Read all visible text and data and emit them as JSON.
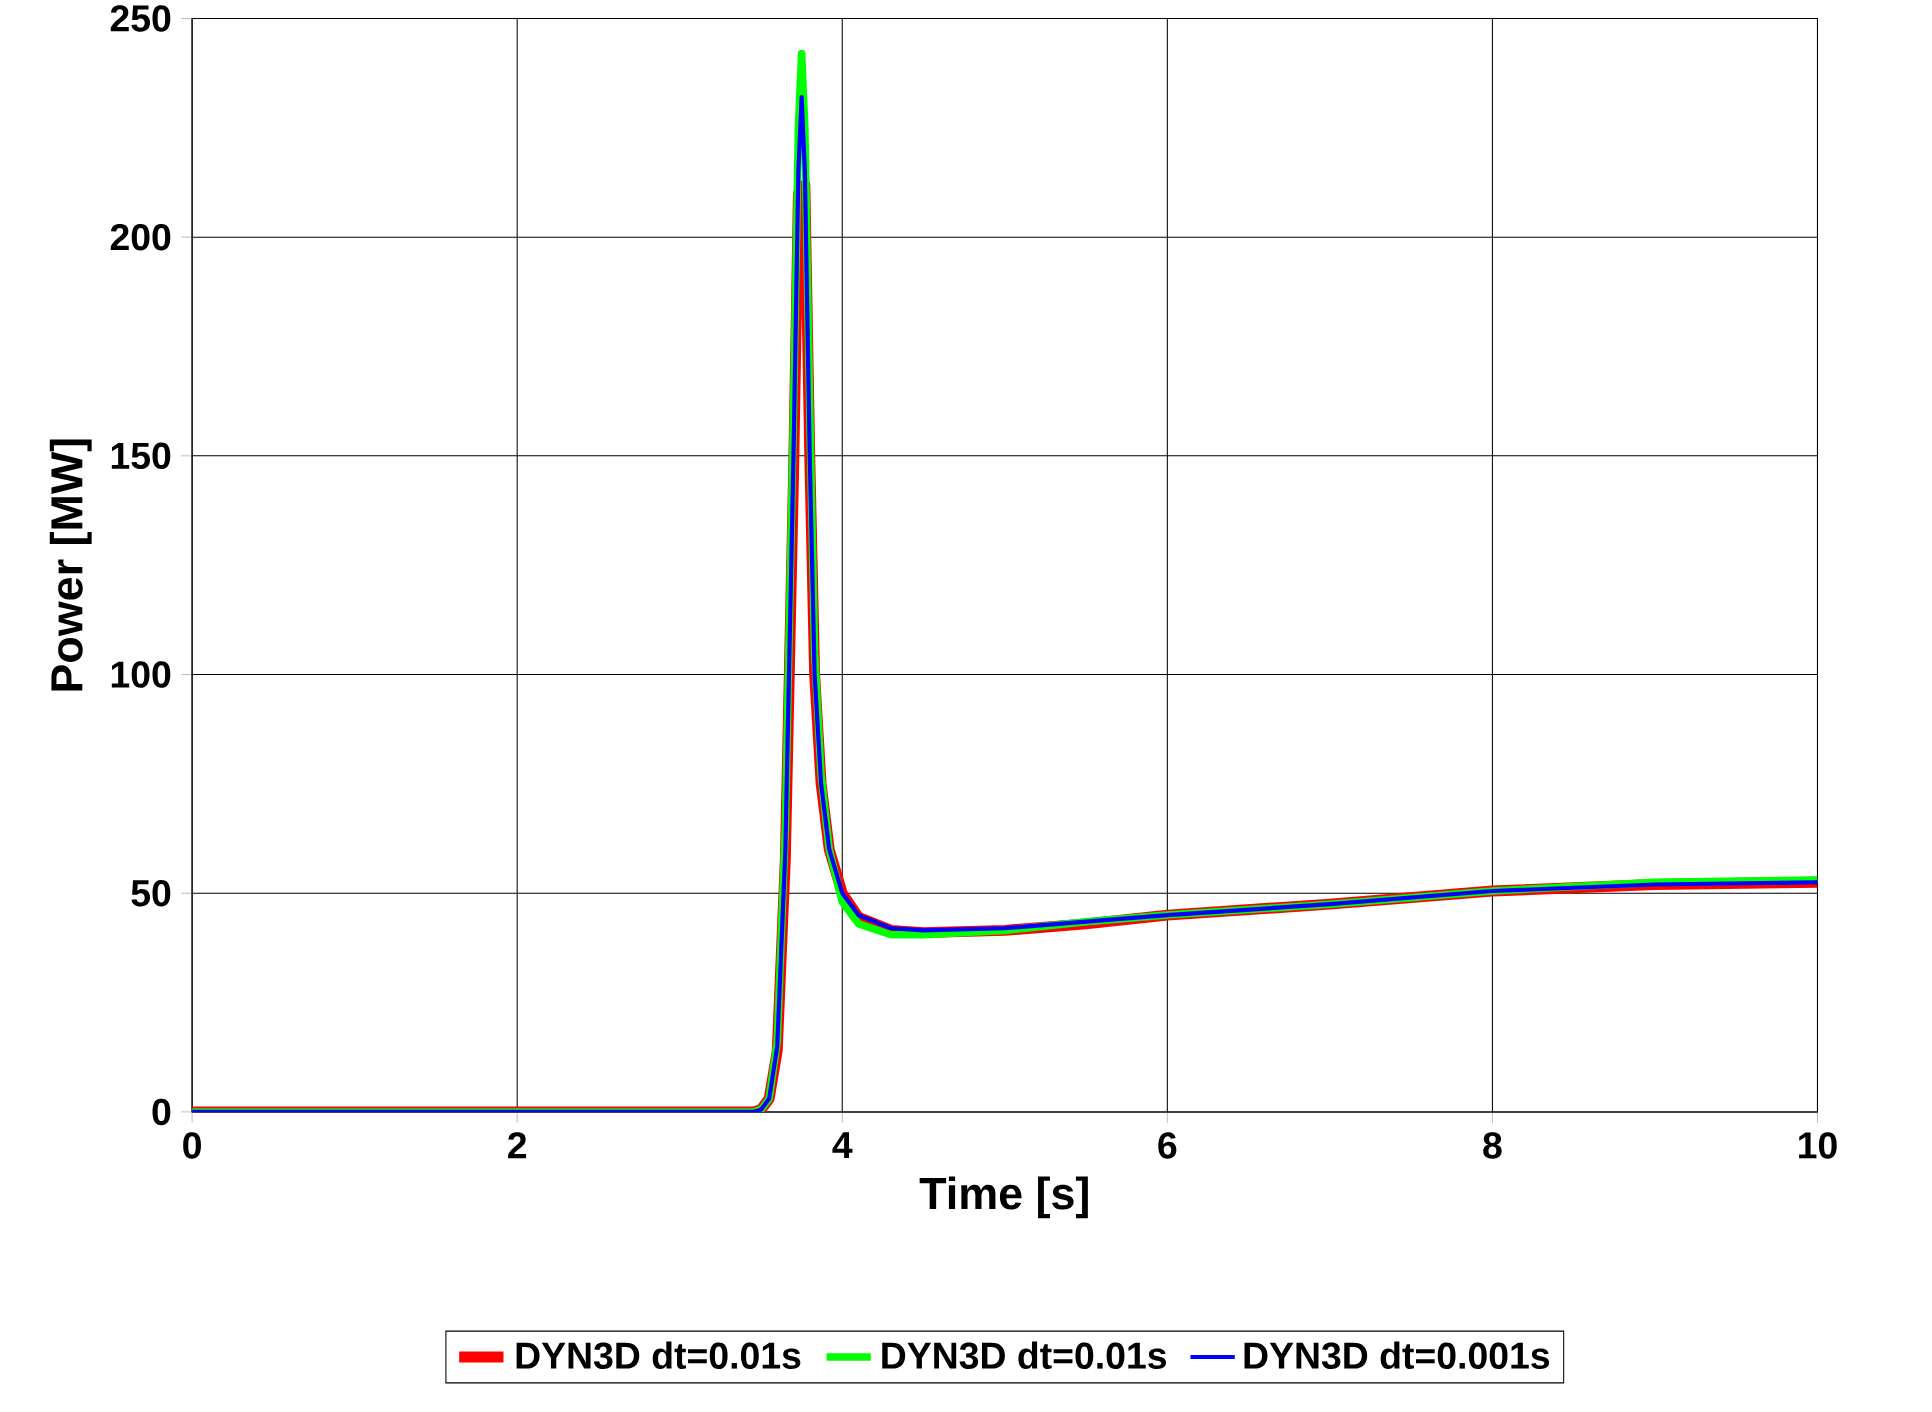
{
  "chart_data": {
    "type": "line",
    "xlabel": "Time [s]",
    "ylabel": "Power [MW]",
    "xlim": [
      0,
      10
    ],
    "ylim": [
      0,
      250
    ],
    "xticks": [
      0,
      2,
      4,
      6,
      8,
      10
    ],
    "yticks": [
      0,
      50,
      100,
      150,
      200,
      250
    ],
    "grid": true,
    "legend": "bottom",
    "marker": "none",
    "line_style": "solid",
    "series": [
      {
        "name": "DYN3D dt=0.01s",
        "color": "#ff0000",
        "x": [
          0,
          3.45,
          3.5,
          3.55,
          3.6,
          3.65,
          3.7,
          3.73,
          3.75,
          3.77,
          3.8,
          3.83,
          3.87,
          3.92,
          4.0,
          4.1,
          4.3,
          4.5,
          5,
          5.5,
          6,
          7,
          8,
          9,
          10
        ],
        "values": [
          0,
          0,
          0.5,
          3,
          14,
          58,
          145,
          210,
          null,
          212,
          150,
          100,
          75,
          60,
          50,
          44.5,
          41.5,
          41,
          41.5,
          43,
          45,
          47.5,
          50.5,
          52,
          52.5
        ]
      },
      {
        "name": "DYN3D dt=0.01s",
        "color": "#00ff00",
        "x": [
          0,
          3.45,
          3.5,
          3.55,
          3.6,
          3.65,
          3.7,
          3.73,
          3.75,
          3.77,
          3.8,
          3.83,
          3.87,
          3.92,
          4.0,
          4.1,
          4.3,
          4.5,
          5,
          5.5,
          6,
          7,
          8,
          9,
          10
        ],
        "values": [
          0,
          0,
          0.5,
          3,
          16,
          65,
          160,
          225,
          242,
          225,
          160,
          105,
          77,
          60,
          48,
          43,
          40.5,
          40.5,
          41.5,
          43.5,
          45,
          47.5,
          50.5,
          52.5,
          53
        ]
      },
      {
        "name": "DYN3D dt=0.001s",
        "color": "#0000ff",
        "x": [
          0,
          3.45,
          3.5,
          3.55,
          3.6,
          3.65,
          3.7,
          3.73,
          3.75,
          3.77,
          3.8,
          3.83,
          3.87,
          3.92,
          4.0,
          4.1,
          4.3,
          4.5,
          5,
          5.5,
          6,
          7,
          8,
          9,
          10
        ],
        "values": [
          0,
          0,
          0.5,
          3,
          15,
          60,
          150,
          215,
          232,
          215,
          150,
          100,
          75,
          60,
          50,
          45,
          42,
          41.5,
          42,
          43.5,
          45,
          47.5,
          50.5,
          52,
          52.5
        ]
      }
    ]
  }
}
